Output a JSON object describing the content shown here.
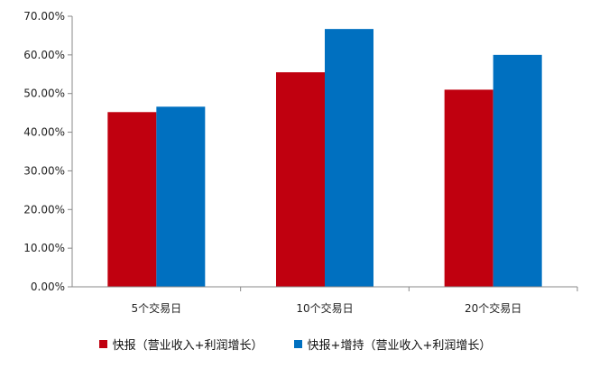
{
  "chart_data": {
    "type": "bar",
    "categories": [
      "5个交易日",
      "10个交易日",
      "20个交易日"
    ],
    "series": [
      {
        "name": "快报（营业收入+利润增长）",
        "values": [
          45.2,
          55.5,
          51.0
        ],
        "color": "#c0000f"
      },
      {
        "name": "快报+增持（营业收入+利润增长）",
        "values": [
          46.6,
          66.7,
          60.0
        ],
        "color": "#0070c0"
      }
    ],
    "yticks": [
      "0.00%",
      "10.00%",
      "20.00%",
      "30.00%",
      "40.00%",
      "50.00%",
      "60.00%",
      "70.00%"
    ],
    "ylim": [
      0,
      70
    ],
    "title": "",
    "xlabel": "",
    "ylabel": "",
    "legend_position": "bottom",
    "grid": false
  }
}
